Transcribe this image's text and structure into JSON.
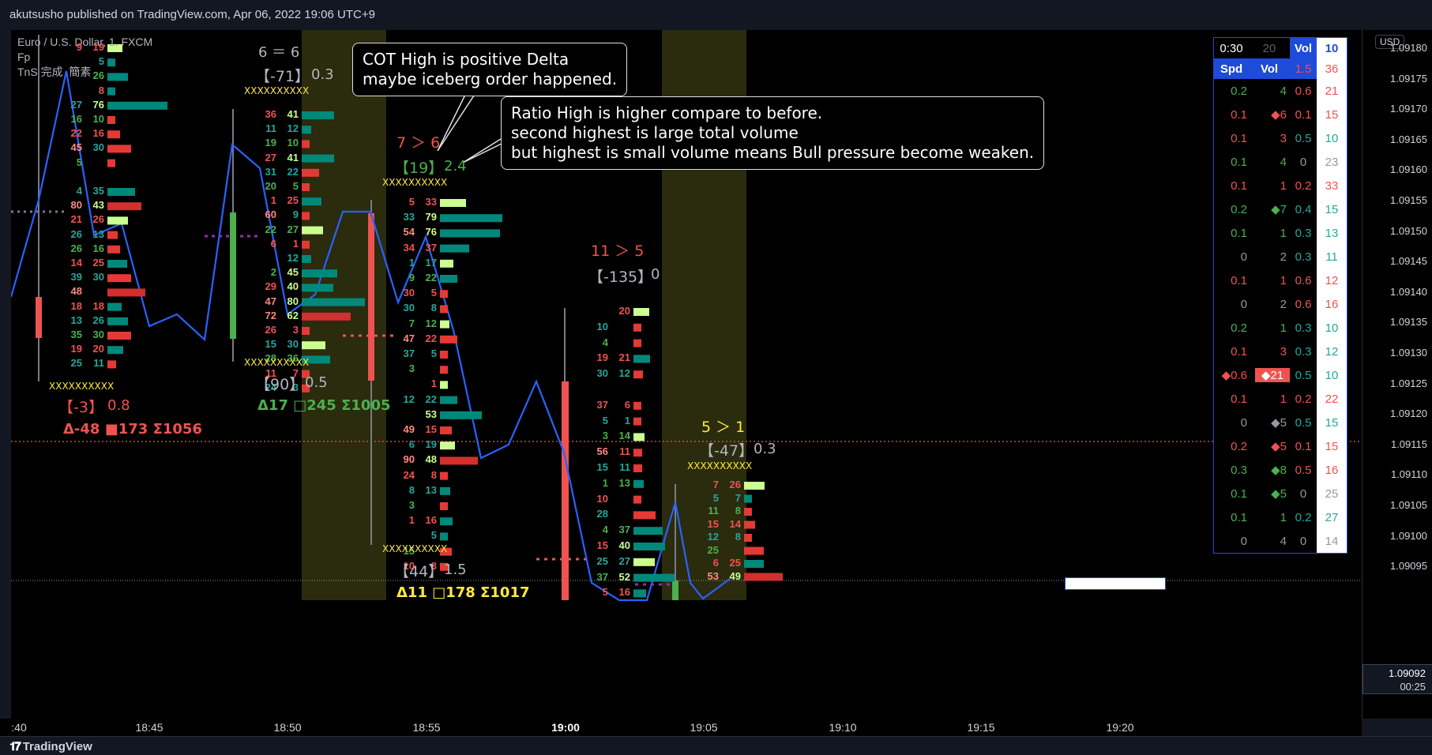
{
  "header": {
    "published": "akutsusho published on TradingView.com, Apr 06, 2022 19:06 UTC+9"
  },
  "chart_info": {
    "symbol": "Euro / U.S. Dollar, 1, FXCM",
    "indicator_fp": "Fp",
    "indicator_tns": "TnS 完成  簡素"
  },
  "price_axis": {
    "currency": "USD",
    "ticks": [
      "1.09180",
      "1.09175",
      "1.09170",
      "1.09165",
      "1.09160",
      "1.09155",
      "1.09150",
      "1.09145",
      "1.09140",
      "1.09135",
      "1.09130",
      "1.09125",
      "1.09120",
      "1.09115",
      "1.09110",
      "1.09105",
      "1.09100",
      "1.09095"
    ],
    "current_price": "1.09092",
    "countdown": "00:25"
  },
  "time_axis": {
    "ticks": [
      ":40",
      "18:45",
      "18:50",
      "18:55",
      "19:00",
      "19:05",
      "19:10",
      "19:15",
      "19:20"
    ]
  },
  "callouts": {
    "cot": [
      "COT High is positive Delta",
      "maybe iceberg order happened."
    ],
    "ratio": [
      "Ratio High is higher compare to before.",
      "second highest is large total volume",
      "but highest is small volume means Bull pressure become weaken."
    ]
  },
  "annotations": {
    "bar1": {
      "poc": "XXXXXXXXXX",
      "delta": "【-3】",
      "ratio": "0.8",
      "stats": "Δ-48  ■173  Σ1056"
    },
    "bar2": {
      "cmp": "6 ＝ 6",
      "delta": "【-71】",
      "ratio": "0.3",
      "xbar": "XXXXXXXXXX",
      "xbar2": "XXXXXXXXXX",
      "delta2": "【90】",
      "ratio2": "0.5",
      "stats": "Δ17  □245  Σ1005"
    },
    "bar3": {
      "cmp": "7 ＞ 6",
      "delta": "【19】",
      "ratio": "2.4",
      "xbar": "XXXXXXXXXX",
      "xbar2": "XXXXXXXXXX",
      "delta2": "【44】",
      "ratio2": "1.5",
      "stats": "Δ11  □178  Σ1017"
    },
    "bar4": {
      "cmp": "11 ＞ 5",
      "delta": "【-135】",
      "ratio": "0"
    },
    "bar5": {
      "cmp": "5 ＞ 1",
      "delta": "【-47】",
      "ratio": "0.3",
      "xbar": "XXXXXXXXXX"
    }
  },
  "tns_table": {
    "timer": "0:30",
    "count": "20",
    "vol_label": "Vol",
    "vol_value": "10",
    "col_spd": "Spd",
    "col_vol": "Vol",
    "hdr_v1": "1.5",
    "hdr_v2": "36",
    "rows": [
      {
        "spd": "0.2",
        "vol": "4",
        "r": "0.6",
        "t": "21",
        "sc": "#4caf50",
        "vc": "#4caf50",
        "rc": "#ef5350",
        "tc": "#ef5350"
      },
      {
        "spd": "0.1",
        "vol": "◆6",
        "r": "0.1",
        "t": "15",
        "sc": "#ef5350",
        "vc": "#ef5350",
        "rc": "#ef5350",
        "tc": "#ef5350"
      },
      {
        "spd": "0.1",
        "vol": "3",
        "r": "0.5",
        "t": "10",
        "sc": "#ef5350",
        "vc": "#ef5350",
        "rc": "#26a69a",
        "tc": "#26a69a"
      },
      {
        "spd": "0.1",
        "vol": "4",
        "r": "0",
        "t": "23",
        "sc": "#4caf50",
        "vc": "#4caf50",
        "rc": "#9598a1",
        "tc": "#9598a1"
      },
      {
        "spd": "0.1",
        "vol": "1",
        "r": "0.2",
        "t": "33",
        "sc": "#ef5350",
        "vc": "#ef5350",
        "rc": "#ef5350",
        "tc": "#ef5350"
      },
      {
        "spd": "0.2",
        "vol": "◆7",
        "r": "0.4",
        "t": "15",
        "sc": "#4caf50",
        "vc": "#4caf50",
        "rc": "#26a69a",
        "tc": "#26a69a"
      },
      {
        "spd": "0.1",
        "vol": "1",
        "r": "0.3",
        "t": "13",
        "sc": "#4caf50",
        "vc": "#4caf50",
        "rc": "#26a69a",
        "tc": "#26a69a"
      },
      {
        "spd": "0",
        "vol": "2",
        "r": "0.3",
        "t": "11",
        "sc": "#9598a1",
        "vc": "#9598a1",
        "rc": "#26a69a",
        "tc": "#26a69a"
      },
      {
        "spd": "0.1",
        "vol": "1",
        "r": "0.6",
        "t": "12",
        "sc": "#ef5350",
        "vc": "#ef5350",
        "rc": "#ef5350",
        "tc": "#ef5350"
      },
      {
        "spd": "0",
        "vol": "2",
        "r": "0.6",
        "t": "16",
        "sc": "#9598a1",
        "vc": "#9598a1",
        "rc": "#ef5350",
        "tc": "#ef5350"
      },
      {
        "spd": "0.2",
        "vol": "1",
        "r": "0.3",
        "t": "10",
        "sc": "#4caf50",
        "vc": "#4caf50",
        "rc": "#26a69a",
        "tc": "#26a69a"
      },
      {
        "spd": "0.1",
        "vol": "3",
        "r": "0.3",
        "t": "12",
        "sc": "#ef5350",
        "vc": "#ef5350",
        "rc": "#26a69a",
        "tc": "#26a69a"
      },
      {
        "spd": "◆0.6",
        "vol": "◆21",
        "r": "0.5",
        "t": "10",
        "sc": "#ef5350",
        "vc": "#ffffff",
        "rc": "#26a69a",
        "tc": "#26a69a",
        "hl": true
      },
      {
        "spd": "0.1",
        "vol": "1",
        "r": "0.2",
        "t": "22",
        "sc": "#ef5350",
        "vc": "#ef5350",
        "rc": "#ef5350",
        "tc": "#ef5350"
      },
      {
        "spd": "0",
        "vol": "◆5",
        "r": "0.5",
        "t": "15",
        "sc": "#9598a1",
        "vc": "#9598a1",
        "rc": "#26a69a",
        "tc": "#26a69a"
      },
      {
        "spd": "0.2",
        "vol": "◆5",
        "r": "0.1",
        "t": "15",
        "sc": "#ef5350",
        "vc": "#ef5350",
        "rc": "#ef5350",
        "tc": "#ef5350"
      },
      {
        "spd": "0.3",
        "vol": "◆8",
        "r": "0.5",
        "t": "16",
        "sc": "#4caf50",
        "vc": "#4caf50",
        "rc": "#ef5350",
        "tc": "#ef5350"
      },
      {
        "spd": "0.1",
        "vol": "◆5",
        "r": "0",
        "t": "25",
        "sc": "#4caf50",
        "vc": "#4caf50",
        "rc": "#9598a1",
        "tc": "#9598a1"
      },
      {
        "spd": "0.1",
        "vol": "1",
        "r": "0.2",
        "t": "27",
        "sc": "#4caf50",
        "vc": "#4caf50",
        "rc": "#26a69a",
        "tc": "#26a69a"
      },
      {
        "spd": "0",
        "vol": "4",
        "r": "0",
        "t": "14",
        "sc": "#9598a1",
        "vc": "#9598a1",
        "rc": "#9598a1",
        "tc": "#9598a1"
      }
    ]
  },
  "footprints": {
    "fp1": [
      [
        "9",
        "19"
      ],
      [
        "",
        "5"
      ],
      [
        "",
        "26"
      ],
      [
        "",
        "8"
      ],
      [
        "27",
        "76"
      ],
      [
        "16",
        "10"
      ],
      [
        "22",
        "16"
      ],
      [
        "45",
        "30"
      ],
      [
        "5",
        ""
      ],
      [
        "",
        ""
      ],
      [
        "4",
        "35"
      ],
      [
        "80",
        "43"
      ],
      [
        "21",
        "26"
      ],
      [
        "26",
        "13"
      ],
      [
        "26",
        "16"
      ],
      [
        "14",
        "25"
      ],
      [
        "39",
        "30"
      ],
      [
        "48",
        ""
      ],
      [
        "18",
        "18"
      ],
      [
        "13",
        "26"
      ],
      [
        "35",
        "30"
      ],
      [
        "19",
        "20"
      ],
      [
        "25",
        "11"
      ]
    ],
    "fp2": [
      [
        "36",
        "41"
      ],
      [
        "11",
        "12"
      ],
      [
        "19",
        "10"
      ],
      [
        "27",
        "41"
      ],
      [
        "31",
        "22"
      ],
      [
        "20",
        "5"
      ],
      [
        "1",
        "25"
      ],
      [
        "60",
        "9"
      ],
      [
        "22",
        "27"
      ],
      [
        "6",
        "1"
      ],
      [
        "",
        "12"
      ],
      [
        "2",
        "45"
      ],
      [
        "29",
        "40"
      ],
      [
        "47",
        "80"
      ],
      [
        "72",
        "62"
      ],
      [
        "26",
        "3"
      ],
      [
        "15",
        "30"
      ],
      [
        "28",
        "36"
      ],
      [
        "11",
        "7"
      ],
      [
        "24",
        "3"
      ]
    ],
    "fp3": [
      [
        "5",
        "33"
      ],
      [
        "33",
        "79"
      ],
      [
        "54",
        "76"
      ],
      [
        "34",
        "37"
      ],
      [
        "1",
        "17"
      ],
      [
        "9",
        "22"
      ],
      [
        "30",
        "5"
      ],
      [
        "30",
        "8"
      ],
      [
        "7",
        "12"
      ],
      [
        "47",
        "22"
      ],
      [
        "37",
        "5"
      ],
      [
        "3",
        ""
      ],
      [
        "",
        "1"
      ],
      [
        "12",
        "22"
      ],
      [
        "",
        "53"
      ],
      [
        "49",
        "15"
      ],
      [
        "6",
        "19"
      ],
      [
        "90",
        "48"
      ],
      [
        "24",
        "8"
      ],
      [
        "8",
        "13"
      ],
      [
        "3",
        ""
      ],
      [
        "1",
        "16"
      ],
      [
        "",
        "5"
      ],
      [
        "15",
        ""
      ],
      [
        "10",
        "3"
      ]
    ],
    "fp4": [
      [
        "",
        "20"
      ],
      [
        "10",
        ""
      ],
      [
        "4",
        ""
      ],
      [
        "19",
        "21"
      ],
      [
        "30",
        "12"
      ],
      [
        "",
        ""
      ],
      [
        "37",
        "6"
      ],
      [
        "5",
        "1"
      ],
      [
        "3",
        "14"
      ],
      [
        "56",
        "11"
      ],
      [
        "15",
        "11"
      ],
      [
        "1",
        "13"
      ],
      [
        "10",
        ""
      ],
      [
        "28",
        ""
      ],
      [
        "4",
        "37"
      ],
      [
        "15",
        "40"
      ],
      [
        "25",
        "27"
      ],
      [
        "37",
        "52"
      ],
      [
        "5",
        "16"
      ]
    ],
    "fp5": [
      [
        "7",
        "26"
      ],
      [
        "5",
        "7"
      ],
      [
        "11",
        "8"
      ],
      [
        "15",
        "14"
      ],
      [
        "12",
        "8"
      ],
      [
        "25",
        ""
      ],
      [
        "6",
        "25"
      ],
      [
        "53",
        "49"
      ],
      [
        "",
        ""
      ]
    ]
  },
  "colors": {
    "bull": "#4caf50",
    "bear": "#ef5350",
    "teal": "#26a69a",
    "lime": "#ccff90",
    "pink": "#ff8a80",
    "line": "#2962ff",
    "yellow": "#ffeb3b",
    "olive": "#2b2b0e"
  }
}
